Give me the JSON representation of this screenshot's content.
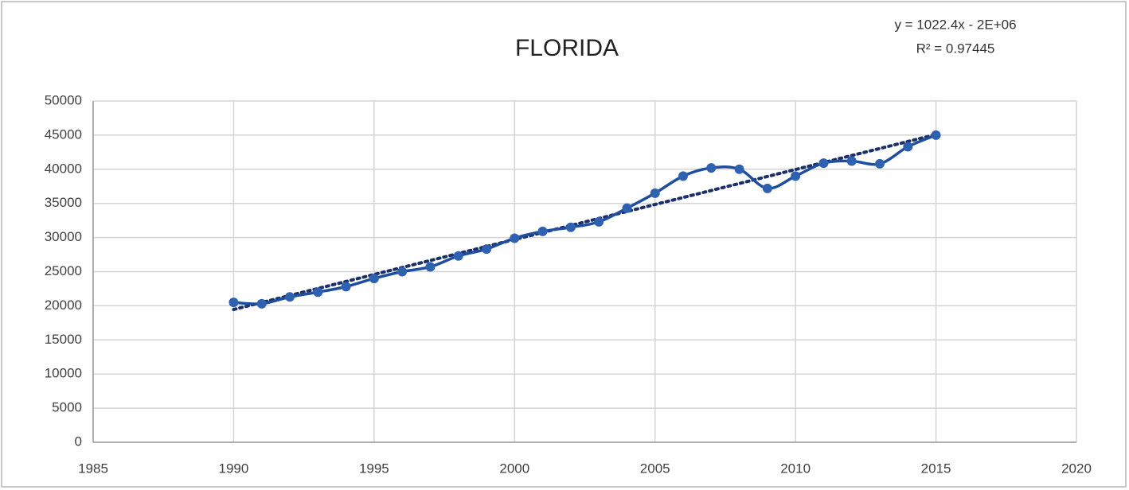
{
  "chart_data": {
    "type": "scatter",
    "title": "FLORIDA",
    "annotations": [
      "y = 1022.4x - 2E+06",
      "R² = 0.97445"
    ],
    "x": [
      1990,
      1991,
      1992,
      1993,
      1994,
      1995,
      1996,
      1997,
      1998,
      1999,
      2000,
      2001,
      2002,
      2003,
      2004,
      2005,
      2006,
      2007,
      2008,
      2009,
      2010,
      2011,
      2012,
      2013,
      2014,
      2015
    ],
    "values": [
      20500,
      20300,
      21300,
      22000,
      22800,
      24000,
      25000,
      25700,
      27300,
      28300,
      29900,
      30900,
      31500,
      32300,
      34300,
      36500,
      39000,
      40200,
      40000,
      37200,
      39000,
      40900,
      41200,
      40800,
      43300,
      45000
    ],
    "color": "#1f4e9c",
    "marker_color": "#2e62b0",
    "trendline": "linear",
    "trendline_color": "#1a2f6b",
    "xlim": [
      1985,
      2020
    ],
    "xticks": [
      1985,
      1990,
      1995,
      2000,
      2005,
      2010,
      2015,
      2020
    ],
    "ylim": [
      0,
      50000
    ],
    "yticks": [
      0,
      5000,
      10000,
      15000,
      20000,
      25000,
      30000,
      35000,
      40000,
      45000,
      50000
    ],
    "grid": true
  }
}
